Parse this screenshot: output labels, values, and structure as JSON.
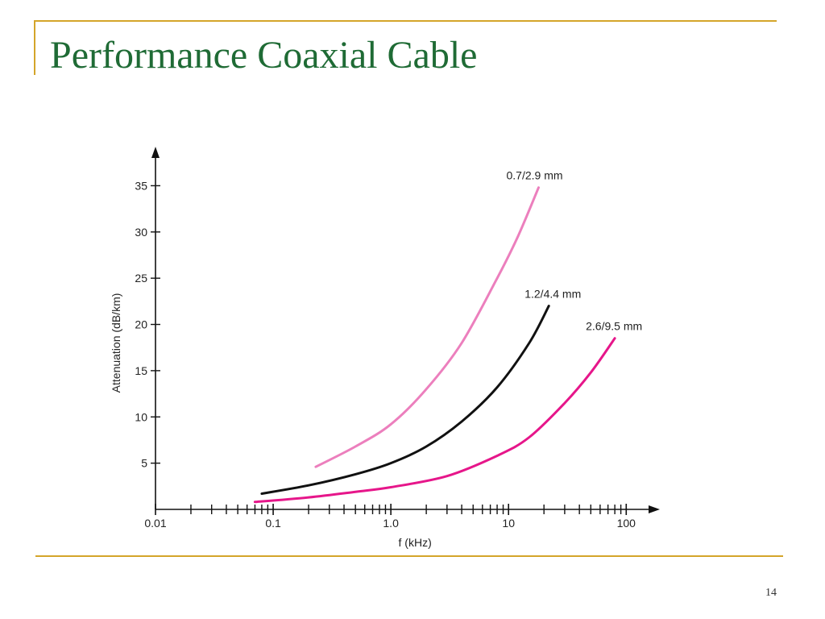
{
  "slide": {
    "title": "Performance Coaxial Cable",
    "page_number": "14"
  },
  "colors": {
    "title": "#1f6b35",
    "frame": "#d4a52a",
    "axis": "#111111"
  },
  "chart_data": {
    "type": "line",
    "title": "",
    "xlabel": "f (kHz)",
    "ylabel": "Attenuation (dB/km)",
    "x_scale": "log",
    "xlim": [
      0.01,
      150
    ],
    "ylim": [
      0,
      38
    ],
    "x_tick_labels": [
      "0.01",
      "0.1",
      "1.0",
      "10",
      "100"
    ],
    "x_major_ticks": [
      0.01,
      0.1,
      1,
      10,
      100
    ],
    "y_ticks": [
      5,
      10,
      15,
      20,
      25,
      30,
      35
    ],
    "grid": false,
    "legend": "none",
    "series": [
      {
        "name": "0.7/2.9 mm",
        "color": "#ec7fbd",
        "x": [
          0.23,
          0.5,
          1,
          2,
          4,
          8,
          12,
          18
        ],
        "y": [
          4.6,
          6.8,
          9.2,
          13.0,
          18.0,
          25.0,
          29.5,
          34.8
        ]
      },
      {
        "name": "1.2/4.4 mm",
        "color": "#111111",
        "x": [
          0.08,
          0.2,
          0.5,
          1,
          2,
          4,
          8,
          15,
          22
        ],
        "y": [
          1.7,
          2.6,
          3.8,
          5.0,
          6.8,
          9.5,
          13.2,
          18.0,
          22.0
        ]
      },
      {
        "name": "2.6/9.5 mm",
        "color": "#e6168a",
        "x": [
          0.07,
          0.2,
          0.5,
          1,
          3,
          8,
          15,
          30,
          50,
          80
        ],
        "y": [
          0.8,
          1.3,
          1.9,
          2.4,
          3.6,
          5.8,
          7.8,
          11.5,
          14.8,
          18.5
        ]
      }
    ]
  }
}
